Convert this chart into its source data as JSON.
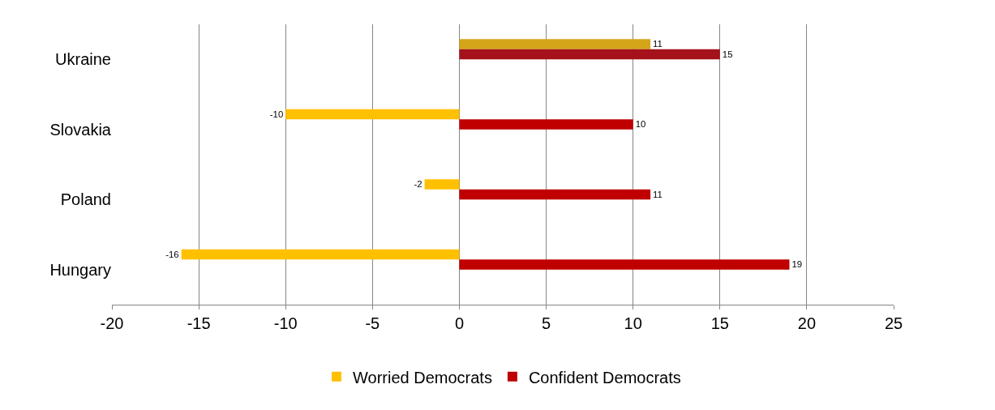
{
  "chart_data": {
    "type": "bar",
    "orientation": "horizontal",
    "categories": [
      "Ukraine",
      "Slovakia",
      "Poland",
      "Hungary"
    ],
    "series": [
      {
        "name": "Worried Democrats",
        "color": "#ffc000",
        "colors": [
          "#d4a419",
          "#ffc000",
          "#ffc000",
          "#ffc000"
        ],
        "values": [
          11,
          -10,
          -2,
          -16
        ]
      },
      {
        "name": "Confident Democrats",
        "color": "#c00000",
        "colors": [
          "#a5121b",
          "#c00000",
          "#c00000",
          "#c00000"
        ],
        "values": [
          15,
          10,
          11,
          19
        ]
      }
    ],
    "xlim": [
      -20,
      25
    ],
    "xticks": [
      -20,
      -15,
      -10,
      -5,
      0,
      5,
      10,
      15,
      20,
      25
    ],
    "grid": "x",
    "legend": "bottom",
    "data_labels": true
  }
}
